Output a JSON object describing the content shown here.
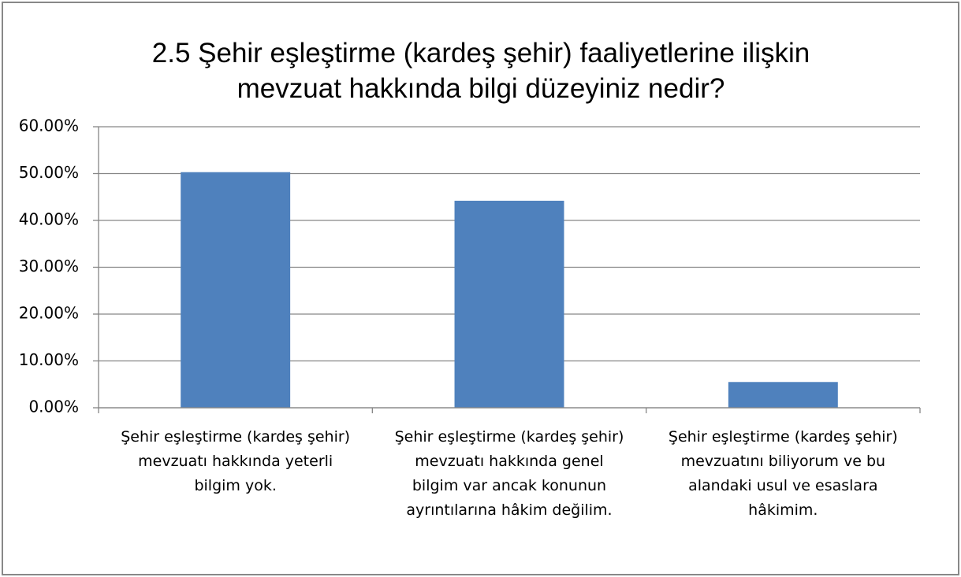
{
  "chart_data": {
    "type": "bar",
    "title": "2.5  Şehir eşleştirme (kardeş şehir) faaliyetlerine ilişkin mevzuat hakkında bilgi düzeyiniz nedir?",
    "categories": [
      "Şehir eşleştirme (kardeş şehir) mevzuatı hakkında yeterli bilgim yok.",
      "Şehir eşleştirme (kardeş şehir) mevzuatı hakkında genel bilgim var ancak konunun ayrıntılarına hâkim değilim.",
      "Şehir eşleştirme (kardeş şehir) mevzuatını biliyorum ve bu alandaki usul ve esaslara hâkimim."
    ],
    "values": [
      50.3,
      44.2,
      5.5
    ],
    "color": "#4f81bd",
    "ylim": [
      0,
      60
    ],
    "yticks": [
      {
        "value": 0,
        "label": "0.00%"
      },
      {
        "value": 10,
        "label": "10.00%"
      },
      {
        "value": 20,
        "label": "20.00%"
      },
      {
        "value": 30,
        "label": "30.00%"
      },
      {
        "value": 40,
        "label": "40.00%"
      },
      {
        "value": 50,
        "label": "50.00%"
      },
      {
        "value": 60,
        "label": "60.00%"
      }
    ],
    "grid": true
  }
}
